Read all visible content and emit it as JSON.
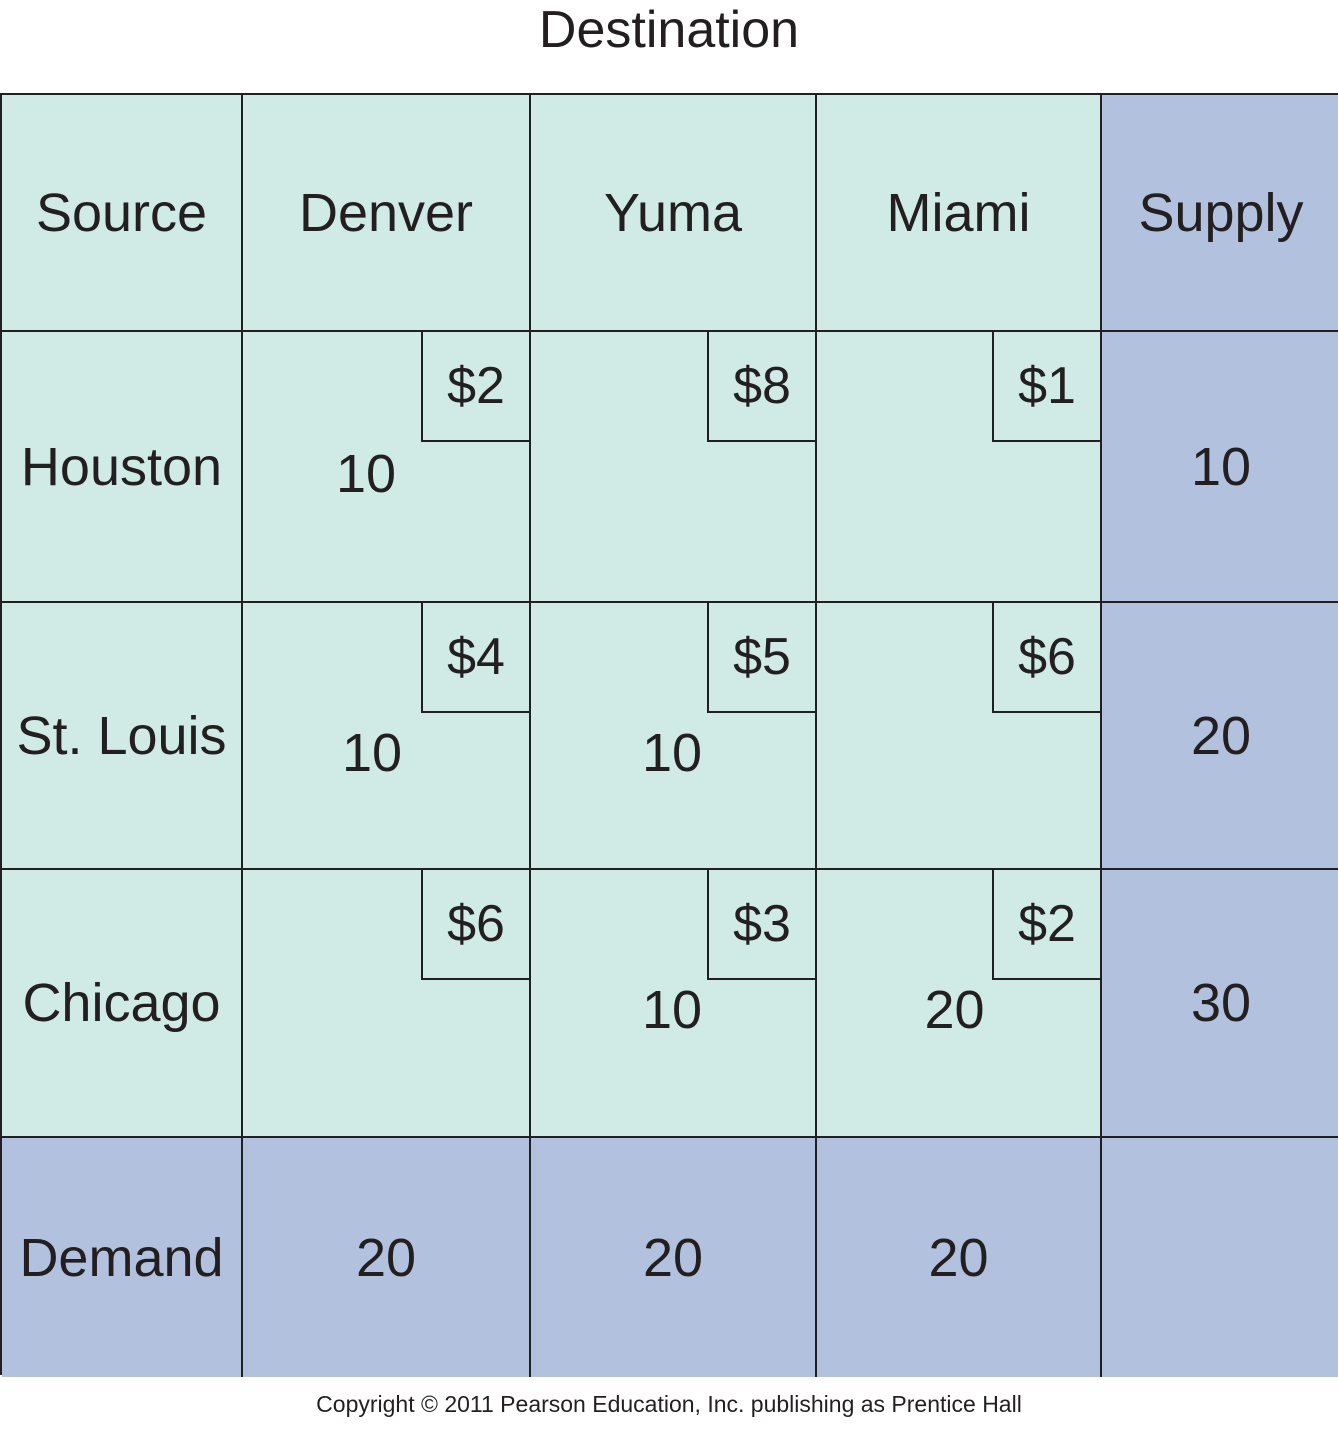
{
  "title": "Destination",
  "header": {
    "source": "Source",
    "destinations": [
      "Denver",
      "Yuma",
      "Miami"
    ],
    "supply": "Supply"
  },
  "rows": [
    {
      "source": "Houston",
      "cells": [
        {
          "cost": "$2",
          "alloc": "10"
        },
        {
          "cost": "$8",
          "alloc": ""
        },
        {
          "cost": "$1",
          "alloc": ""
        }
      ],
      "supply": "10"
    },
    {
      "source": "St. Louis",
      "cells": [
        {
          "cost": "$4",
          "alloc": "10"
        },
        {
          "cost": "$5",
          "alloc": "10"
        },
        {
          "cost": "$6",
          "alloc": ""
        }
      ],
      "supply": "20"
    },
    {
      "source": "Chicago",
      "cells": [
        {
          "cost": "$6",
          "alloc": ""
        },
        {
          "cost": "$3",
          "alloc": "10"
        },
        {
          "cost": "$2",
          "alloc": "20"
        }
      ],
      "supply": "30"
    }
  ],
  "demand": {
    "label": "Demand",
    "values": [
      "20",
      "20",
      "20"
    ],
    "total": ""
  },
  "copyright": "Copyright © 2011 Pearson Education, Inc. publishing as Prentice Hall",
  "colors": {
    "cell_fill": "#d0eae6",
    "totals_fill": "#b1c1de",
    "line": "#231f20"
  }
}
